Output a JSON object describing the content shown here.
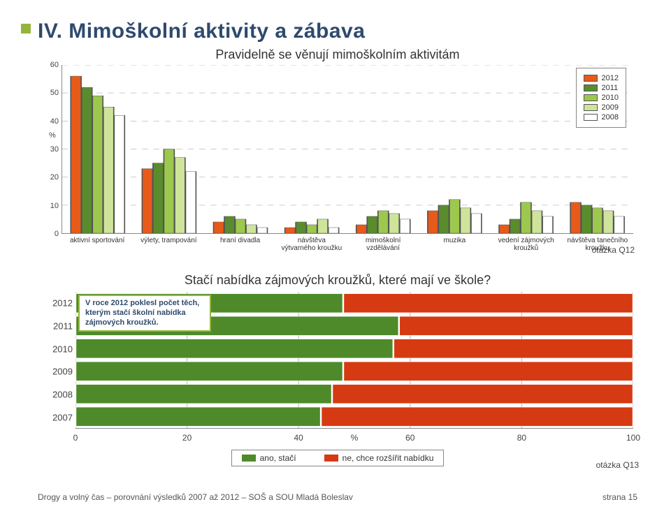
{
  "page": {
    "title": "IV. Mimoškolní aktivity a zábava",
    "subtitle1": "Pravidelně se věnují mimoškolním aktivitám",
    "subtitle2": "Stačí nabídka zájmových kroužků, které mají ve škole?",
    "q12": "otázka Q12",
    "q13": "otázka Q13",
    "footer_left": "Drogy a volný čas – porovnání výsledků 2007 až 2012 – SOŠ a SOU Mladá Boleslav",
    "footer_right": "strana 15",
    "note": "V roce 2012 poklesl počet těch, kterým stačí školní nabídka zájmových kroužků."
  },
  "chart1": {
    "type": "bar",
    "ylim": [
      0,
      60
    ],
    "ytick_step": 10,
    "ylabel": "%",
    "bg": "#ffffff",
    "grid_color": "#bbbbbb",
    "categories": [
      "aktivní sportování",
      "výlety, trampování",
      "hraní divadla",
      "návštěva výtvarného kroužku",
      "mimoškolní vzdělávání",
      "muzika",
      "vedení zájmových kroužků",
      "návštěva tanečního kroužku"
    ],
    "series": [
      {
        "name": "2012",
        "color": "#e85a1a",
        "values": [
          56,
          23,
          4,
          2,
          3,
          8,
          3,
          11
        ]
      },
      {
        "name": "2011",
        "color": "#5a8c2e",
        "values": [
          52,
          25,
          6,
          4,
          6,
          10,
          5,
          10
        ]
      },
      {
        "name": "2010",
        "color": "#9cc94d",
        "values": [
          49,
          30,
          5,
          3,
          8,
          12,
          11,
          9
        ]
      },
      {
        "name": "2009",
        "color": "#cfe49b",
        "values": [
          45,
          27,
          3,
          5,
          7,
          9,
          8,
          8
        ]
      },
      {
        "name": "2008",
        "color": "#ffffff",
        "values": [
          42,
          22,
          2,
          2,
          5,
          7,
          6,
          6
        ]
      }
    ],
    "bar_border": "#555555",
    "label_fontsize": 10
  },
  "chart2": {
    "type": "stacked-hbar",
    "xlim": [
      0,
      100
    ],
    "xtick_step": 20,
    "xcenter_label": "%",
    "years": [
      "2012",
      "2011",
      "2010",
      "2009",
      "2008",
      "2007"
    ],
    "series": [
      {
        "name": "ano, stačí",
        "color": "#4e8a2a",
        "values": [
          48,
          58,
          57,
          48,
          46,
          44
        ]
      },
      {
        "name": "ne, chce rozšířit nabídku",
        "color": "#d63a12",
        "values": [
          52,
          42,
          43,
          52,
          54,
          56
        ]
      }
    ],
    "bg": "#ffffff",
    "label_fontsize": 13
  }
}
